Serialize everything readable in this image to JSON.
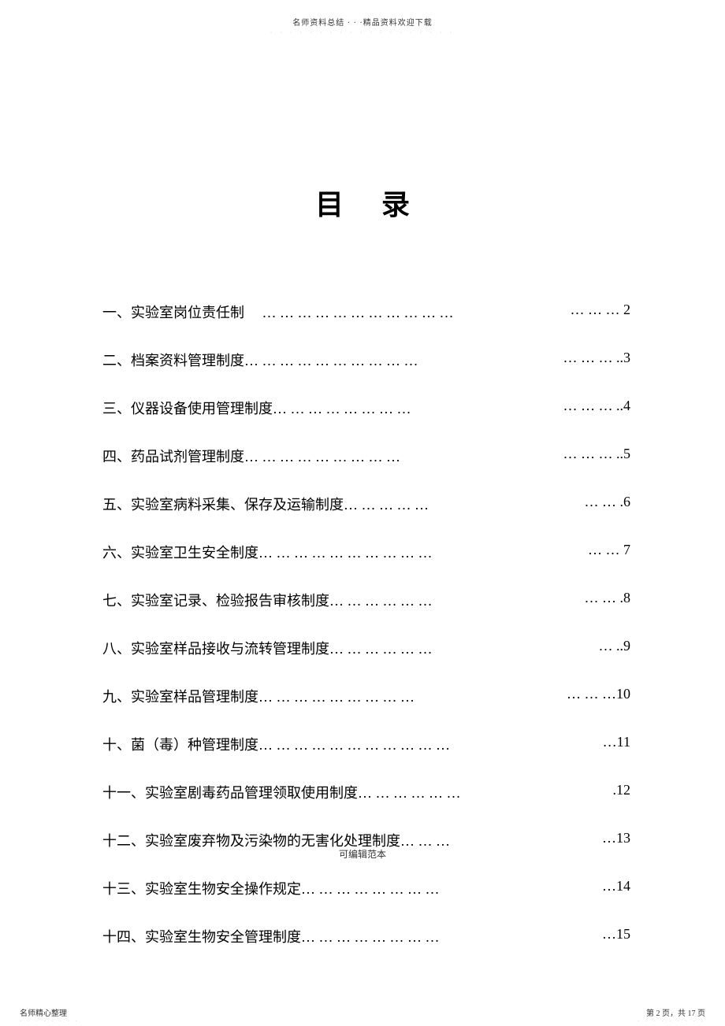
{
  "header": {
    "text": "名师资料总结 · · ·精品资料欢迎下载",
    "dots": "· · · · · · · · · · · · · · · · · · ·"
  },
  "title": "目录",
  "toc": [
    {
      "label": "一、实验室岗位责任制　  … … … … … … … … … … …",
      "page": "  … … …   2"
    },
    {
      "label": "二、档案资料管理制度… … … … … … … … … …",
      "page": " … … … ..3"
    },
    {
      "label": "三、仪器设备使用管理制度… … … … … … … …",
      "page": " … … … ..4"
    },
    {
      "label": "四、药品试剂管理制度… … … … … … … … …",
      "page": " … … … ..5"
    },
    {
      "label": "五、实验室病料采集、保存及运输制度… … … … …",
      "page": "  … … .6"
    },
    {
      "label": "六、实验室卫生安全制度… … … … … … … … … …",
      "page": "  … …  7"
    },
    {
      "label": "七、实验室记录、检验报告审核制度… … … … … …",
      "page": " … … .8"
    },
    {
      "label": "八、实验室样品接收与流转管理制度… … … … … …",
      "page": "  … ..9"
    },
    {
      "label": "九、实验室样品管理制度… … … … … … … … …",
      "page": " … … …10"
    },
    {
      "label": "十、菌（毒）种管理制度… … … … … … … … … … …",
      "page": " …11"
    },
    {
      "label": "十一、实验室剧毒药品管理领取使用制度… … … … … …",
      "page": "  .12"
    },
    {
      "label": "十二、实验室废弃物及污染物的无害化处理制度… … …",
      "page": "…13"
    },
    {
      "label": "十三、实验室生物安全操作规定… … … … … … … …",
      "page": "…14"
    },
    {
      "label": "十四、实验室生物安全管理制度… … … … … … … …",
      "page": "…15"
    }
  ],
  "footer": {
    "center": "可编辑范本",
    "left": "名师精心整理",
    "left_dots": "· · · · · · · ·",
    "right": "第 2 页，共 17 页",
    "right_dots": "· · · · · · · · ·"
  }
}
